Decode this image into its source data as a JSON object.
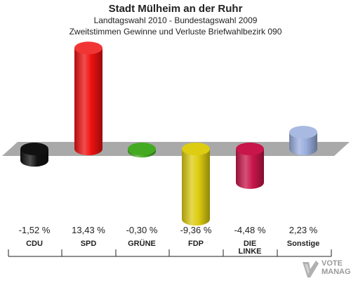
{
  "title": "Stadt Mülheim an der Ruhr",
  "subtitle1": "Landtagswahl 2010 - Bundestagswahl 2009",
  "subtitle2": "Zweitstimmen Gewinne und Verluste Briefwahlbezirk 090",
  "watermark": {
    "line1": "VOTE",
    "line2": "MANAGER"
  },
  "chart_data": {
    "type": "bar",
    "categories": [
      "CDU",
      "SPD",
      "GRÜNE",
      "FDP",
      "DIE LINKE",
      "Sonstige"
    ],
    "category_lines": [
      [
        "CDU"
      ],
      [
        "SPD"
      ],
      [
        "GRÜNE"
      ],
      [
        "FDP"
      ],
      [
        "DIE",
        "LINKE"
      ],
      [
        "Sonstige"
      ]
    ],
    "values": [
      -1.52,
      13.43,
      -0.3,
      -9.36,
      -4.48,
      2.23
    ],
    "value_labels": [
      "-1,52 %",
      "13,43 %",
      "-0,30 %",
      "-9,36 %",
      "-4,48 %",
      "2,23 %"
    ],
    "colors": [
      "#111111",
      "#ee1111",
      "#44aa22",
      "#ddcc11",
      "#c8154a",
      "#9aaedd"
    ],
    "baseline": 0,
    "grid": false,
    "legend": "none"
  }
}
